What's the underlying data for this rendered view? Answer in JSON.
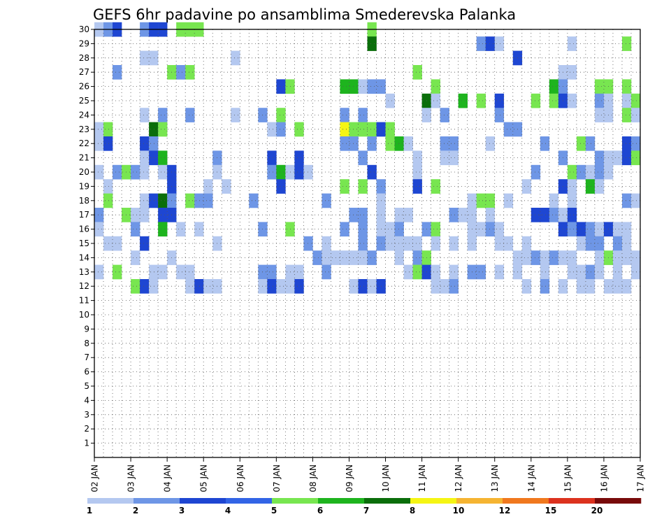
{
  "chart_data": {
    "type": "heatmap",
    "title": "GEFS 6hr padavine po ansamblima Smederevska Palanka",
    "xlabel": "",
    "ylabel": "",
    "x_ticks": [
      "02 JAN",
      "03 JAN",
      "04 JAN",
      "05 JAN",
      "06 JAN",
      "07 JAN",
      "08 JAN",
      "09 JAN",
      "10 JAN",
      "11 JAN",
      "12 JAN",
      "13 JAN",
      "14 JAN",
      "15 JAN",
      "16 JAN",
      "17 JAN"
    ],
    "y_ticks": [
      "1",
      "2",
      "3",
      "4",
      "5",
      "6",
      "7",
      "8",
      "9",
      "10",
      "11",
      "12",
      "13",
      "14",
      "15",
      "16",
      "17",
      "18",
      "19",
      "20",
      "21",
      "22",
      "23",
      "24",
      "25",
      "26",
      "27",
      "28",
      "29",
      "30"
    ],
    "ylim": [
      0,
      30
    ],
    "time_steps": 60,
    "grid": true,
    "levels": [
      "1",
      "2",
      "3",
      "4",
      "5",
      "6",
      "7",
      "8",
      "10",
      "12",
      "15",
      "20"
    ],
    "colors": [
      "#b4c8f0",
      "#6e96e6",
      "#1e46d2",
      "#3264e6",
      "#78e650",
      "#1eb41e",
      "#0a6e0a",
      "#f5f514",
      "#f5b432",
      "#f0781e",
      "#dc321e",
      "#780a0a"
    ],
    "cells": [
      [
        2,
        0,
        1
      ],
      [
        3,
        0,
        2
      ],
      [
        6,
        0,
        3
      ],
      [
        4,
        0,
        6
      ],
      [
        5,
        0,
        7
      ],
      [
        6,
        0,
        8
      ],
      [
        5,
        1,
        10
      ],
      [
        6,
        1,
        11
      ],
      [
        10,
        1,
        12
      ],
      [
        5,
        1,
        31
      ],
      [
        6,
        3,
        31
      ],
      [
        3,
        0,
        43
      ],
      [
        5,
        0,
        44
      ],
      [
        1,
        0,
        45
      ],
      [
        2,
        0,
        53
      ],
      [
        3,
        1,
        59
      ],
      [
        1,
        0,
        6
      ],
      [
        2,
        0,
        7
      ],
      [
        1,
        0,
        16
      ],
      [
        6,
        0,
        47
      ],
      [
        4,
        0,
        3
      ],
      [
        4,
        1,
        9
      ],
      [
        3,
        0,
        10
      ],
      [
        3,
        1,
        11
      ],
      [
        3,
        1,
        36
      ],
      [
        2,
        0,
        52
      ],
      [
        2,
        0,
        53
      ],
      [
        5,
        0,
        21
      ],
      [
        6,
        1,
        22
      ],
      [
        5,
        2,
        28
      ],
      [
        4,
        2,
        29
      ],
      [
        2,
        0,
        30
      ],
      [
        3,
        0,
        31
      ],
      [
        3,
        0,
        32
      ],
      [
        3,
        1,
        38
      ],
      [
        4,
        2,
        51
      ],
      [
        4,
        0,
        52
      ],
      [
        3,
        1,
        56
      ],
      [
        3,
        1,
        57
      ],
      [
        2,
        1,
        59
      ],
      [
        2,
        0,
        33
      ],
      [
        6,
        3,
        37
      ],
      [
        2,
        0,
        38
      ],
      [
        2,
        2,
        41
      ],
      [
        4,
        1,
        43
      ],
      [
        5,
        0,
        45
      ],
      [
        6,
        1,
        49
      ],
      [
        7,
        1,
        51
      ],
      [
        5,
        0,
        52
      ],
      [
        1,
        0,
        53
      ],
      [
        4,
        0,
        56
      ],
      [
        2,
        0,
        57
      ],
      [
        2,
        0,
        59
      ],
      [
        3,
        1,
        60
      ],
      [
        1,
        0,
        6
      ],
      [
        3,
        0,
        8
      ],
      [
        3,
        0,
        11
      ],
      [
        1,
        0,
        16
      ],
      [
        4,
        0,
        19
      ],
      [
        3,
        1,
        21
      ],
      [
        3,
        0,
        28
      ],
      [
        3,
        0,
        30
      ],
      [
        2,
        0,
        37
      ],
      [
        3,
        0,
        39
      ],
      [
        3,
        0,
        45
      ],
      [
        1,
        0,
        56
      ],
      [
        2,
        0,
        57
      ],
      [
        3,
        1,
        59
      ],
      [
        2,
        0,
        60
      ],
      [
        2,
        0,
        1
      ],
      [
        4,
        1,
        2
      ],
      [
        2,
        3,
        7
      ],
      [
        3,
        1,
        8
      ],
      [
        2,
        0,
        20
      ],
      [
        3,
        0,
        21
      ],
      [
        3,
        1,
        23
      ],
      [
        5,
        4,
        28
      ],
      [
        5,
        1,
        29
      ],
      [
        5,
        1,
        30
      ],
      [
        5,
        1,
        31
      ],
      [
        5,
        0,
        32
      ],
      [
        4,
        1,
        33
      ],
      [
        4,
        0,
        46
      ],
      [
        3,
        0,
        47
      ],
      [
        2,
        0,
        1
      ],
      [
        6,
        0,
        2
      ],
      [
        5,
        0,
        6
      ],
      [
        3,
        0,
        7
      ],
      [
        4,
        0,
        28
      ],
      [
        4,
        0,
        29
      ],
      [
        4,
        0,
        31
      ],
      [
        5,
        1,
        33
      ],
      [
        6,
        2,
        34
      ],
      [
        2,
        0,
        35
      ],
      [
        4,
        0,
        39
      ],
      [
        4,
        0,
        40
      ],
      [
        2,
        0,
        44
      ],
      [
        3,
        0,
        50
      ],
      [
        3,
        1,
        54
      ],
      [
        3,
        0,
        55
      ],
      [
        6,
        0,
        59
      ],
      [
        4,
        0,
        60
      ],
      [
        1,
        0,
        6
      ],
      [
        6,
        0,
        7
      ],
      [
        6,
        2,
        8
      ],
      [
        3,
        0,
        14
      ],
      [
        5,
        0,
        20
      ],
      [
        6,
        0,
        23
      ],
      [
        3,
        0,
        30
      ],
      [
        2,
        0,
        36
      ],
      [
        1,
        0,
        39
      ],
      [
        2,
        0,
        40
      ],
      [
        4,
        0,
        52
      ],
      [
        3,
        0,
        56
      ],
      [
        1,
        0,
        57
      ],
      [
        1,
        0,
        58
      ],
      [
        6,
        0,
        59
      ],
      [
        5,
        1,
        60
      ],
      [
        1,
        0,
        1
      ],
      [
        4,
        0,
        3
      ],
      [
        4,
        1,
        4
      ],
      [
        3,
        0,
        5
      ],
      [
        1,
        0,
        6
      ],
      [
        2,
        0,
        8
      ],
      [
        5,
        0,
        9
      ],
      [
        1,
        0,
        14
      ],
      [
        4,
        0,
        20
      ],
      [
        6,
        2,
        21
      ],
      [
        1,
        0,
        22
      ],
      [
        6,
        0,
        23
      ],
      [
        2,
        0,
        24
      ],
      [
        5,
        0,
        31
      ],
      [
        1,
        0,
        36
      ],
      [
        3,
        0,
        49
      ],
      [
        3,
        1,
        53
      ],
      [
        4,
        0,
        54
      ],
      [
        2,
        0,
        55
      ],
      [
        4,
        0,
        56
      ],
      [
        1,
        0,
        57
      ],
      [
        1,
        0,
        2
      ],
      [
        5,
        0,
        9
      ],
      [
        1,
        0,
        13
      ],
      [
        1,
        0,
        15
      ],
      [
        5,
        0,
        21
      ],
      [
        4,
        1,
        28
      ],
      [
        4,
        1,
        30
      ],
      [
        4,
        0,
        32
      ],
      [
        6,
        0,
        36
      ],
      [
        6,
        1,
        38
      ],
      [
        1,
        0,
        48
      ],
      [
        5,
        0,
        52
      ],
      [
        1,
        0,
        53
      ],
      [
        2,
        2,
        55
      ],
      [
        2,
        0,
        56
      ],
      [
        2,
        1,
        2
      ],
      [
        1,
        0,
        6
      ],
      [
        5,
        0,
        7
      ],
      [
        6,
        3,
        8
      ],
      [
        3,
        0,
        9
      ],
      [
        4,
        1,
        11
      ],
      [
        3,
        0,
        12
      ],
      [
        4,
        0,
        13
      ],
      [
        4,
        0,
        18
      ],
      [
        4,
        0,
        26
      ],
      [
        1,
        0,
        32
      ],
      [
        1,
        0,
        42
      ],
      [
        6,
        1,
        43
      ],
      [
        6,
        1,
        44
      ],
      [
        2,
        0,
        46
      ],
      [
        1,
        0,
        51
      ],
      [
        1,
        0,
        53
      ],
      [
        4,
        0,
        59
      ],
      [
        2,
        0,
        60
      ],
      [
        4,
        0,
        1
      ],
      [
        4,
        1,
        4
      ],
      [
        2,
        0,
        5
      ],
      [
        1,
        0,
        6
      ],
      [
        5,
        0,
        8
      ],
      [
        6,
        0,
        9
      ],
      [
        4,
        0,
        29
      ],
      [
        4,
        0,
        30
      ],
      [
        1,
        0,
        32
      ],
      [
        2,
        0,
        34
      ],
      [
        1,
        0,
        35
      ],
      [
        4,
        0,
        40
      ],
      [
        2,
        0,
        41
      ],
      [
        2,
        0,
        42
      ],
      [
        1,
        0,
        44
      ],
      [
        5,
        0,
        49
      ],
      [
        6,
        0,
        50
      ],
      [
        4,
        0,
        51
      ],
      [
        1,
        0,
        52
      ],
      [
        5,
        0,
        53
      ],
      [
        1,
        0,
        1
      ],
      [
        3,
        0,
        5
      ],
      [
        4,
        2,
        8
      ],
      [
        2,
        0,
        10
      ],
      [
        2,
        0,
        12
      ],
      [
        4,
        0,
        19
      ],
      [
        3,
        1,
        22
      ],
      [
        4,
        0,
        28
      ],
      [
        4,
        0,
        30
      ],
      [
        1,
        0,
        32
      ],
      [
        2,
        0,
        33
      ],
      [
        3,
        0,
        34
      ],
      [
        3,
        0,
        37
      ],
      [
        3,
        1,
        38
      ],
      [
        2,
        0,
        42
      ],
      [
        1,
        0,
        43
      ],
      [
        3,
        0,
        44
      ],
      [
        2,
        0,
        45
      ],
      [
        5,
        0,
        52
      ],
      [
        3,
        0,
        53
      ],
      [
        5,
        0,
        54
      ],
      [
        3,
        0,
        55
      ],
      [
        1,
        0,
        56
      ],
      [
        5,
        0,
        57
      ],
      [
        2,
        0,
        58
      ],
      [
        1,
        0,
        59
      ],
      [
        2,
        0,
        2
      ],
      [
        1,
        0,
        3
      ],
      [
        5,
        0,
        6
      ],
      [
        1,
        0,
        14
      ],
      [
        3,
        0,
        24
      ],
      [
        2,
        0,
        26
      ],
      [
        3,
        0,
        30
      ],
      [
        4,
        0,
        32
      ],
      [
        1,
        0,
        33
      ],
      [
        2,
        0,
        34
      ],
      [
        1,
        0,
        35
      ],
      [
        2,
        0,
        36
      ],
      [
        1,
        0,
        38
      ],
      [
        1,
        0,
        40
      ],
      [
        2,
        0,
        42
      ],
      [
        2,
        0,
        45
      ],
      [
        1,
        0,
        46
      ],
      [
        1,
        0,
        48
      ],
      [
        2,
        0,
        54
      ],
      [
        3,
        0,
        55
      ],
      [
        4,
        0,
        56
      ],
      [
        3,
        0,
        58
      ],
      [
        1,
        0,
        59
      ],
      [
        2,
        0,
        5
      ],
      [
        2,
        0,
        9
      ],
      [
        4,
        0,
        25
      ],
      [
        2,
        0,
        26
      ],
      [
        2,
        0,
        27
      ],
      [
        2,
        0,
        28
      ],
      [
        2,
        0,
        29
      ],
      [
        1,
        0,
        30
      ],
      [
        4,
        0,
        31
      ],
      [
        1,
        0,
        34
      ],
      [
        3,
        0,
        36
      ],
      [
        3,
        1,
        37
      ],
      [
        1,
        0,
        47
      ],
      [
        1,
        0,
        48
      ],
      [
        3,
        0,
        49
      ],
      [
        1,
        0,
        50
      ],
      [
        4,
        0,
        51
      ],
      [
        1,
        0,
        52
      ],
      [
        1,
        0,
        53
      ],
      [
        2,
        0,
        56
      ],
      [
        6,
        1,
        57
      ],
      [
        2,
        0,
        58
      ],
      [
        1,
        0,
        59
      ],
      [
        1,
        0,
        60
      ],
      [
        2,
        0,
        1
      ],
      [
        5,
        1,
        3
      ],
      [
        2,
        0,
        7
      ],
      [
        2,
        0,
        8
      ],
      [
        2,
        0,
        10
      ],
      [
        1,
        0,
        11
      ],
      [
        4,
        0,
        19
      ],
      [
        4,
        0,
        20
      ],
      [
        1,
        0,
        22
      ],
      [
        2,
        0,
        23
      ],
      [
        4,
        0,
        26
      ],
      [
        2,
        0,
        35
      ],
      [
        3,
        1,
        36
      ],
      [
        5,
        0,
        37
      ],
      [
        1,
        0,
        38
      ],
      [
        1,
        0,
        40
      ],
      [
        3,
        0,
        42
      ],
      [
        3,
        0,
        43
      ],
      [
        1,
        0,
        45
      ],
      [
        1,
        0,
        47
      ],
      [
        2,
        0,
        50
      ],
      [
        1,
        0,
        53
      ],
      [
        2,
        0,
        54
      ],
      [
        3,
        0,
        55
      ],
      [
        1,
        0,
        56
      ],
      [
        2,
        0,
        58
      ],
      [
        1,
        0,
        60
      ],
      [
        3,
        1,
        5
      ],
      [
        6,
        0,
        6
      ],
      [
        2,
        0,
        7
      ],
      [
        2,
        0,
        11
      ],
      [
        6,
        0,
        12
      ],
      [
        1,
        0,
        13
      ],
      [
        1,
        0,
        14
      ],
      [
        1,
        0,
        19
      ],
      [
        5,
        0,
        20
      ],
      [
        2,
        0,
        21
      ],
      [
        1,
        0,
        22
      ],
      [
        6,
        0,
        23
      ],
      [
        2,
        0,
        29
      ],
      [
        6,
        0,
        30
      ],
      [
        1,
        0,
        31
      ],
      [
        5,
        0,
        32
      ],
      [
        1,
        0,
        38
      ],
      [
        1,
        0,
        39
      ],
      [
        3,
        0,
        40
      ],
      [
        1,
        0,
        48
      ],
      [
        3,
        0,
        50
      ],
      [
        1,
        0,
        52
      ],
      [
        1,
        0,
        54
      ],
      [
        1,
        0,
        55
      ],
      [
        2,
        0,
        57
      ],
      [
        2,
        0,
        58
      ],
      [
        1,
        0,
        59
      ]
    ]
  },
  "ui": {
    "colorbar_labels": [
      "1",
      "2",
      "3",
      "4",
      "5",
      "6",
      "7",
      "8",
      "10",
      "12",
      "15",
      "20"
    ]
  }
}
